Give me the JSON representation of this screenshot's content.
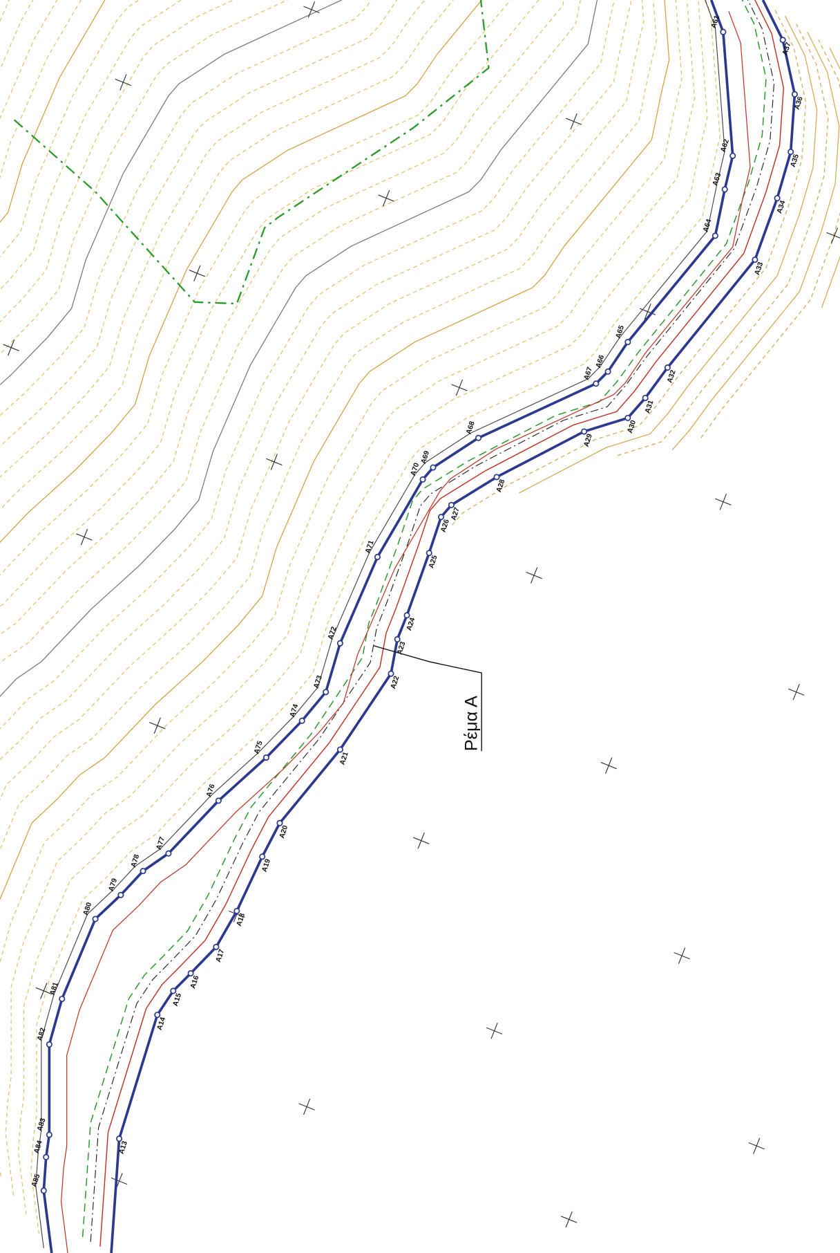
{
  "map": {
    "label": "Ρέμα Α",
    "right_bank": [
      "A13",
      "A14",
      "A15",
      "A16",
      "A17",
      "A18",
      "A19",
      "A20",
      "A21",
      "A22",
      "A23",
      "A24",
      "A25",
      "A26",
      "A27",
      "A28",
      "A29",
      "A30",
      "A31",
      "A32",
      "A33",
      "A34",
      "A35",
      "A36",
      "A37"
    ],
    "left_bank": [
      "A85",
      "A84",
      "A83",
      "A82",
      "A81",
      "A80",
      "A79",
      "A78",
      "A77",
      "A76",
      "A75",
      "A74",
      "A73",
      "A72",
      "A71",
      "A70",
      "A69",
      "A68",
      "A67",
      "A66",
      "A65",
      "A64",
      "A63",
      "A62",
      "A61"
    ]
  }
}
